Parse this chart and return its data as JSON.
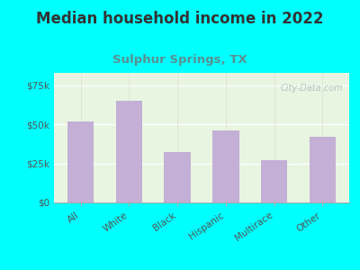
{
  "title": "Median household income in 2022",
  "subtitle": "Sulphur Springs, TX",
  "categories": [
    "All",
    "White",
    "Black",
    "Hispanic",
    "Multirace",
    "Other"
  ],
  "values": [
    52000,
    65000,
    32000,
    46000,
    27000,
    42000
  ],
  "bar_color": "#c4afd6",
  "background_outer": "#00ffff",
  "background_inner": "#e8f5e0",
  "title_color": "#333333",
  "subtitle_color": "#5a9090",
  "ytick_labels": [
    "$0",
    "$25k",
    "$50k",
    "$75k"
  ],
  "ytick_values": [
    0,
    25000,
    50000,
    75000
  ],
  "ylim": [
    0,
    83000
  ],
  "watermark": "City-Data.com",
  "title_fontsize": 12,
  "subtitle_fontsize": 9.5,
  "tick_fontsize": 7.5,
  "xlabel_fontsize": 7.5
}
